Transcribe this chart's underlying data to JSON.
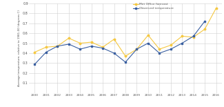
{
  "years": [
    2000,
    2001,
    2002,
    2003,
    2004,
    2005,
    2006,
    2007,
    2008,
    2009,
    2010,
    2011,
    2012,
    2013,
    2014,
    2015,
    2016
  ],
  "met_office": [
    0.41,
    0.46,
    0.47,
    0.55,
    0.5,
    0.51,
    0.46,
    0.54,
    0.37,
    0.44,
    0.58,
    0.44,
    0.48,
    0.57,
    0.56,
    0.64,
    0.85
  ],
  "observed": [
    0.29,
    0.41,
    0.47,
    0.49,
    0.44,
    0.47,
    0.45,
    0.4,
    0.31,
    0.44,
    0.5,
    0.4,
    0.44,
    0.5,
    0.57,
    0.72,
    null
  ],
  "met_color": "#f5c842",
  "obs_color": "#3a5fa0",
  "ylabel": "Average temperature, relative to 1981-00 (degrees C)",
  "ylim": [
    0.0,
    0.9
  ],
  "yticks": [
    0.0,
    0.1,
    0.2,
    0.3,
    0.4,
    0.5,
    0.6,
    0.7,
    0.8,
    0.9
  ],
  "ytick_labels": [
    "",
    "0.1",
    "0.2",
    "0.3",
    "0.4",
    "0.5",
    "0.6",
    "0.7",
    "0.8",
    "0.9"
  ],
  "legend_met": "Met Office forecast",
  "legend_obs": "Observed temperature",
  "background": "#ffffff",
  "grid_color": "#d0d0d0"
}
